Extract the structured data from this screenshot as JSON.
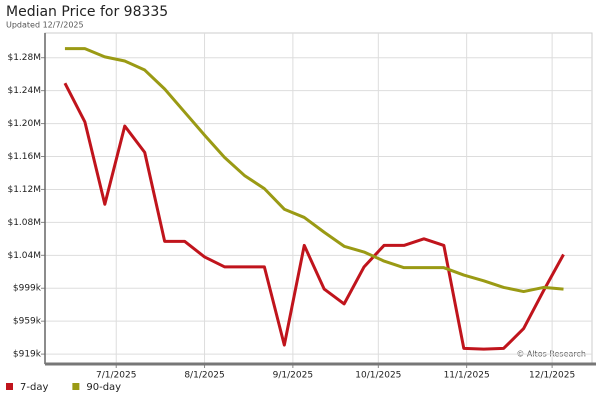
{
  "chart_data": {
    "type": "line",
    "title": "Median Price for 98335",
    "subtitle": "Updated 12/7/2025",
    "credit": "© Altos Research",
    "x": [
      "6/13/2025",
      "6/20/2025",
      "6/27/2025",
      "7/4/2025",
      "7/11/2025",
      "7/18/2025",
      "7/25/2025",
      "8/1/2025",
      "8/8/2025",
      "8/15/2025",
      "8/22/2025",
      "8/29/2025",
      "9/5/2025",
      "9/12/2025",
      "9/19/2025",
      "9/26/2025",
      "10/3/2025",
      "10/10/2025",
      "10/17/2025",
      "10/24/2025",
      "10/31/2025",
      "11/7/2025",
      "11/14/2025",
      "11/21/2025",
      "11/28/2025",
      "12/5/2025"
    ],
    "xlim": [
      "6/6/2025",
      "12/15/2025"
    ],
    "xticks": [
      "7/1/2025",
      "8/1/2025",
      "9/1/2025",
      "10/1/2025",
      "11/1/2025",
      "12/1/2025"
    ],
    "ylim": [
      907000,
      1309000
    ],
    "yticks": [
      {
        "value": 919000,
        "label": "$919k"
      },
      {
        "value": 959000,
        "label": "$959k"
      },
      {
        "value": 999000,
        "label": "$999k"
      },
      {
        "value": 1039000,
        "label": "$1.04M"
      },
      {
        "value": 1079000,
        "label": "$1.08M"
      },
      {
        "value": 1119000,
        "label": "$1.12M"
      },
      {
        "value": 1159000,
        "label": "$1.16M"
      },
      {
        "value": 1199000,
        "label": "$1.20M"
      },
      {
        "value": 1239000,
        "label": "$1.24M"
      },
      {
        "value": 1279000,
        "label": "$1.28M"
      }
    ],
    "grid": true,
    "legend": "bottom-left",
    "series": [
      {
        "name": "7-day",
        "color": "#c0141c",
        "values": [
          1248000,
          1201000,
          1101000,
          1196000,
          1164000,
          1056000,
          1056000,
          1037000,
          1025000,
          1025000,
          1025000,
          930000,
          1051000,
          998000,
          980000,
          1025000,
          1051000,
          1051000,
          1059000,
          1051000,
          926000,
          925000,
          926000,
          950000,
          996000,
          1040000
        ]
      },
      {
        "name": "90-day",
        "color": "#9a9a14",
        "values": [
          1290000,
          1290000,
          1280000,
          1275000,
          1264000,
          1241000,
          1213000,
          1185000,
          1158000,
          1136000,
          1120000,
          1095000,
          1085000,
          1067000,
          1050000,
          1043000,
          1032000,
          1024000,
          1024000,
          1024000,
          1015000,
          1008000,
          1000000,
          995000,
          1000000,
          998000
        ]
      }
    ]
  }
}
